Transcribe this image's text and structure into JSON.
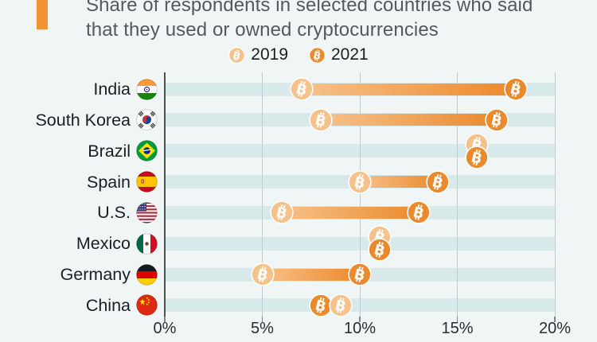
{
  "title": {
    "line1": "Share of respondents in selected countries who said",
    "line2": "that they used or owned cryptocurrencies"
  },
  "legend": [
    {
      "label": "2019",
      "color": "#f6c28c",
      "icon": "bitcoin-coin-light"
    },
    {
      "label": "2021",
      "color": "#eb8a2c",
      "icon": "bitcoin-coin-dark"
    }
  ],
  "colors": {
    "background": "#f0f5f6",
    "row_band": "#d7e9e8",
    "gridline": "#c2cbcd",
    "axis": "#4d5154",
    "accent_bar": "#f29433",
    "title_text": "#54595e",
    "label_text": "#1b1f22",
    "series_2019": "#f6c28c",
    "series_2021": "#eb8a2c"
  },
  "chart_data": {
    "type": "bar",
    "variant": "dumbbell",
    "title": "Share of respondents in selected countries who said that they used or owned cryptocurrencies",
    "categories": [
      "India",
      "South Korea",
      "Brazil",
      "Spain",
      "U.S.",
      "Mexico",
      "Germany",
      "China"
    ],
    "series": [
      {
        "name": "2019",
        "values": [
          7,
          8,
          16,
          10,
          6,
          11,
          5,
          9
        ]
      },
      {
        "name": "2021",
        "values": [
          18,
          17,
          16,
          14,
          13,
          11,
          10,
          8
        ]
      }
    ],
    "x_ticks": [
      0,
      5,
      10,
      15,
      20
    ],
    "x_tick_labels": [
      "0%",
      "5%",
      "10%",
      "15%",
      "20%"
    ],
    "xlim": [
      0,
      20
    ],
    "xlabel": "",
    "ylabel": "",
    "grid": "vertical",
    "legend_position": "top",
    "flags": [
      "flag-india",
      "flag-south-korea",
      "flag-brazil",
      "flag-spain",
      "flag-us",
      "flag-mexico",
      "flag-germany",
      "flag-china"
    ]
  }
}
